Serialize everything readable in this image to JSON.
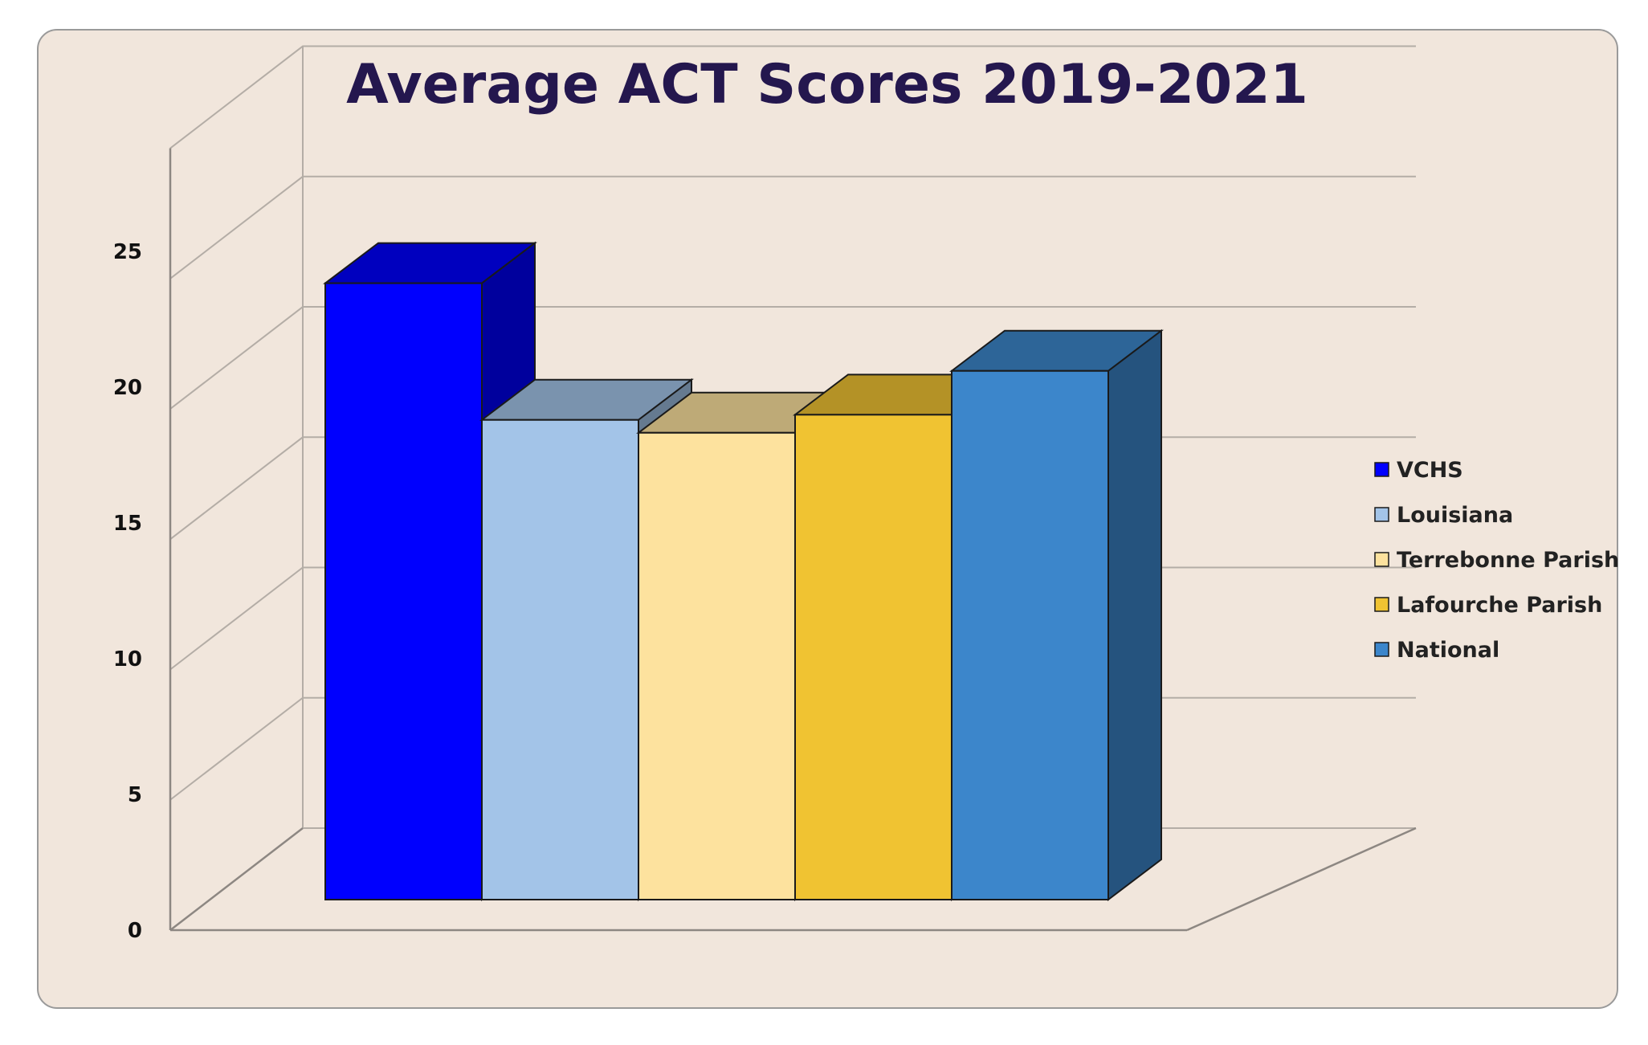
{
  "chart_data": {
    "type": "bar",
    "title": "Average ACT Scores 2019-2021",
    "xlabel": "",
    "ylabel": "",
    "ylim": [
      0,
      25
    ],
    "yticks": [
      "0",
      "5",
      "10",
      "15",
      "20",
      "25"
    ],
    "grid": true,
    "three_d": true,
    "legend_position": "right",
    "series": [
      {
        "name": "VCHS",
        "value": 23.9,
        "color": "#0000fe"
      },
      {
        "name": "Louisiana",
        "value": 18.6,
        "color": "#a3c4e8"
      },
      {
        "name": "Terrebonne Parish",
        "value": 18.1,
        "color": "#fde29e"
      },
      {
        "name": "Lafourche Parish",
        "value": 18.8,
        "color": "#f0c332"
      },
      {
        "name": "National",
        "value": 20.5,
        "color": "#3c86cb"
      }
    ]
  }
}
